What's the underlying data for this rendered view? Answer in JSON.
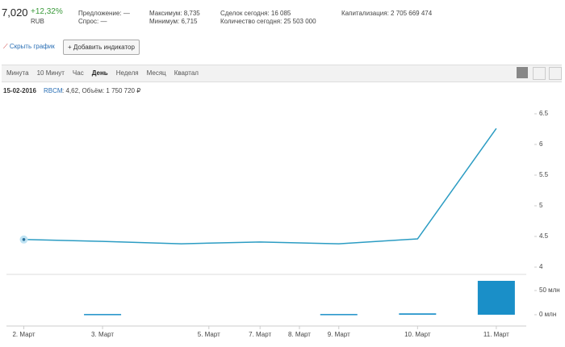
{
  "header": {
    "price": "7,020",
    "change": "+12,32%",
    "currency": "RUB",
    "offer": "Предложение: —",
    "bid": "Спрос: —",
    "max": "Максимум: 8,735",
    "min": "Минимум: 6,715",
    "deals": "Сделок сегодня: 16 085",
    "quantity": "Количество сегодня: 25 503 000",
    "cap": "Капитализация: 2 705 669 474"
  },
  "toolbar": {
    "hide": "Скрыть график",
    "add": "+ Добавить индикатор",
    "tabs": [
      "Минута",
      "10 Минут",
      "Час",
      "День",
      "Неделя",
      "Месяц",
      "Квартал"
    ],
    "active_tab": 3
  },
  "chart_data": {
    "type": "line",
    "info_date": "15-02-2016",
    "info_ticker": "RBCM",
    "info_text": ": 4,62, Объём: 1 750 720 ₽",
    "x": [
      0,
      1,
      2,
      3,
      4,
      5,
      6
    ],
    "xlim": [
      -0.2,
      6.36
    ],
    "xticks": [
      {
        "value": 0,
        "label": "2. Март"
      },
      {
        "value": 1,
        "label": "3. Март"
      },
      {
        "value": 2.35,
        "label": "5. Март"
      },
      {
        "value": 3,
        "label": "7. Март"
      },
      {
        "value": 3.5,
        "label": "8. Март"
      },
      {
        "value": 4,
        "label": "9. Март"
      },
      {
        "value": 5,
        "label": "10. Март"
      },
      {
        "value": 6,
        "label": "11. Март"
      }
    ],
    "series": [
      {
        "color": "#2b9cc3",
        "values": [
          4.45,
          4.42,
          4.38,
          4.41,
          4.38,
          4.46,
          6.26
        ]
      }
    ],
    "ylim": [
      3.9,
      6.65
    ],
    "yticks": [
      4,
      4.5,
      5,
      5.5,
      6,
      6.5
    ],
    "volume": {
      "color": "#1a8fc8",
      "values": [
        null,
        1.5,
        null,
        null,
        1.5,
        2.8,
        70
      ],
      "ylim": [
        0,
        80
      ],
      "yticks": [
        {
          "value": 0,
          "label": "0 млн"
        },
        {
          "value": 50,
          "label": "50 млн"
        }
      ]
    }
  }
}
